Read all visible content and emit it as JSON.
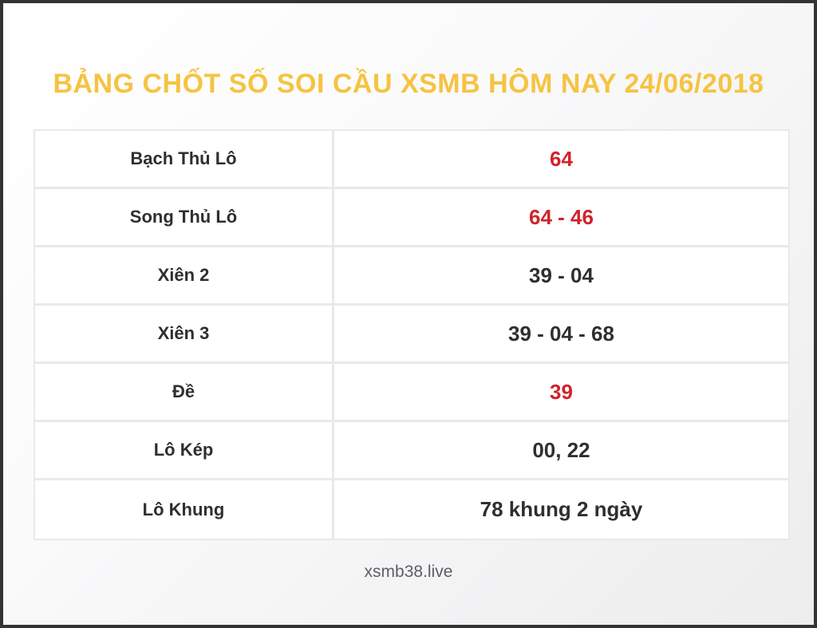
{
  "page": {
    "title": "BẢNG CHỐT SỐ SOI CẦU XSMB HÔM NAY 24/06/2018",
    "footer": "xsmb38.live"
  },
  "colors": {
    "title": "#f6c342",
    "highlight": "#d0232a",
    "text": "#2f2f2f",
    "footer_text": "#5b6066",
    "table_border": "#e9e9ea",
    "frame_border": "#333333"
  },
  "table": {
    "rows": [
      {
        "label": "Bạch Thủ Lô",
        "value": "64",
        "highlight": true
      },
      {
        "label": "Song Thủ Lô",
        "value": "64 - 46",
        "highlight": true
      },
      {
        "label": "Xiên 2",
        "value": "39 - 04",
        "highlight": false
      },
      {
        "label": "Xiên 3",
        "value": "39 - 04 - 68",
        "highlight": false
      },
      {
        "label": "Đề",
        "value": "39",
        "highlight": true
      },
      {
        "label": "Lô Kép",
        "value": "00, 22",
        "highlight": false
      },
      {
        "label": "Lô Khung",
        "value": "78 khung 2 ngày",
        "highlight": false
      }
    ]
  }
}
